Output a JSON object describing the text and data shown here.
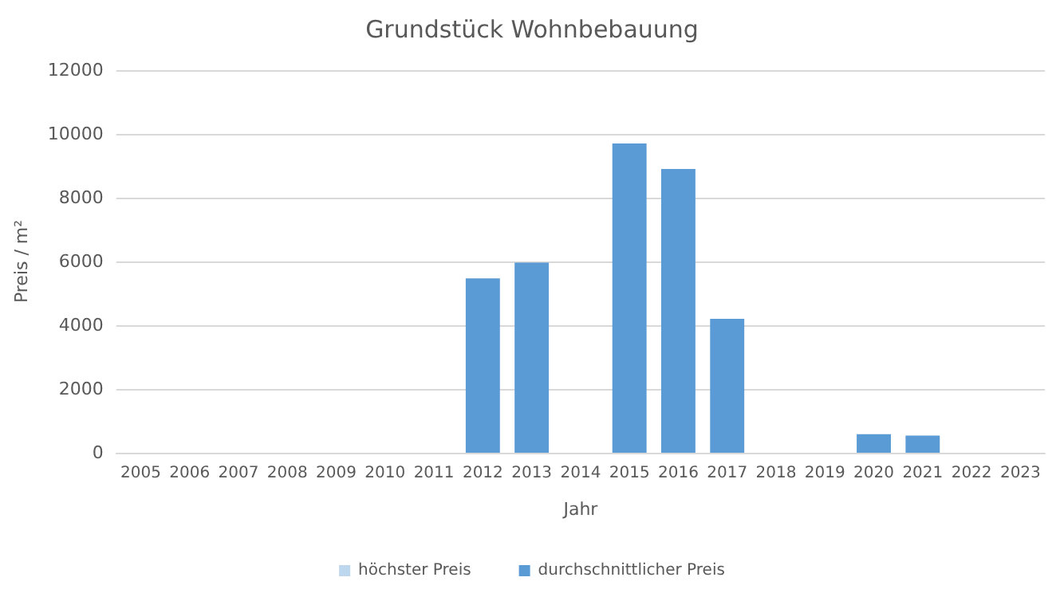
{
  "chart_data": {
    "type": "bar",
    "title": "Grundstück Wohnbebauung",
    "xlabel": "Jahr",
    "ylabel": "Preis / m²",
    "categories": [
      "2005",
      "2006",
      "2007",
      "2008",
      "2009",
      "2010",
      "2011",
      "2012",
      "2013",
      "2014",
      "2015",
      "2016",
      "2017",
      "2018",
      "2019",
      "2020",
      "2021",
      "2022",
      "2023"
    ],
    "series": [
      {
        "name": "höchster Preis",
        "color": "#bdd7ee",
        "values": [
          null,
          null,
          null,
          null,
          null,
          null,
          null,
          null,
          null,
          null,
          null,
          null,
          null,
          null,
          null,
          null,
          null,
          null,
          null
        ]
      },
      {
        "name": "durchschnittlicher Preis",
        "color": "#5b9bd5",
        "values": [
          null,
          null,
          null,
          null,
          null,
          null,
          null,
          5470,
          5960,
          null,
          9700,
          8900,
          4200,
          null,
          null,
          580,
          540,
          null,
          null
        ]
      }
    ],
    "ylim": [
      0,
      12000
    ],
    "yticks": [
      0,
      2000,
      4000,
      6000,
      8000,
      10000,
      12000
    ],
    "grid": "y",
    "legend": "bottom"
  }
}
